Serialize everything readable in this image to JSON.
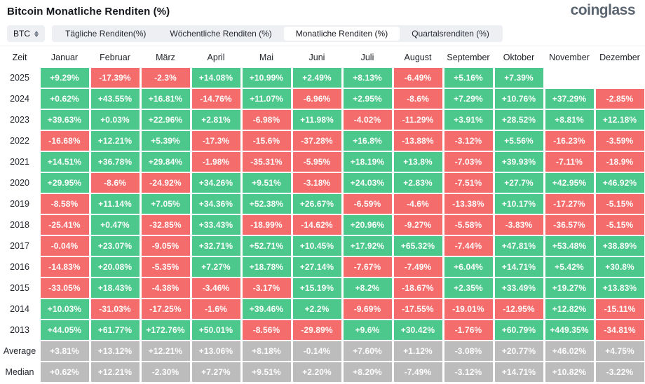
{
  "header": {
    "title": "Bitcoin Monatliche Renditen (%)",
    "logo": "coinglass"
  },
  "toolbar": {
    "symbol_selector": {
      "label": "BTC"
    },
    "tabs": [
      {
        "label": "Tägliche Renditen(%)",
        "active": false
      },
      {
        "label": "Wöchentliche Renditen (%)",
        "active": false
      },
      {
        "label": "Monatliche Renditen (%)",
        "active": true
      },
      {
        "label": "Quartalsrenditen (%)",
        "active": false
      }
    ]
  },
  "colors": {
    "positive": "#4dc88c",
    "negative": "#f56c6c",
    "neutral": "#bcbcbc"
  },
  "chart_data": {
    "type": "heatmap",
    "title": "Bitcoin Monatliche Renditen (%)",
    "time_header": "Zeit",
    "columns": [
      "Januar",
      "Februar",
      "März",
      "April",
      "Mai",
      "Juni",
      "Juli",
      "August",
      "September",
      "Oktober",
      "November",
      "Dezember"
    ],
    "rows": [
      {
        "label": "2025",
        "values": [
          "+9.29%",
          "-17.39%",
          "-2.3%",
          "+14.08%",
          "+10.99%",
          "+2.49%",
          "+8.13%",
          "-6.49%",
          "+5.16%",
          "+7.39%",
          "",
          ""
        ]
      },
      {
        "label": "2024",
        "values": [
          "+0.62%",
          "+43.55%",
          "+16.81%",
          "-14.76%",
          "+11.07%",
          "-6.96%",
          "+2.95%",
          "-8.6%",
          "+7.29%",
          "+10.76%",
          "+37.29%",
          "-2.85%"
        ]
      },
      {
        "label": "2023",
        "values": [
          "+39.63%",
          "+0.03%",
          "+22.96%",
          "+2.81%",
          "-6.98%",
          "+11.98%",
          "-4.02%",
          "-11.29%",
          "+3.91%",
          "+28.52%",
          "+8.81%",
          "+12.18%"
        ]
      },
      {
        "label": "2022",
        "values": [
          "-16.68%",
          "+12.21%",
          "+5.39%",
          "-17.3%",
          "-15.6%",
          "-37.28%",
          "+16.8%",
          "-13.88%",
          "-3.12%",
          "+5.56%",
          "-16.23%",
          "-3.59%"
        ]
      },
      {
        "label": "2021",
        "values": [
          "+14.51%",
          "+36.78%",
          "+29.84%",
          "-1.98%",
          "-35.31%",
          "-5.95%",
          "+18.19%",
          "+13.8%",
          "-7.03%",
          "+39.93%",
          "-7.11%",
          "-18.9%"
        ]
      },
      {
        "label": "2020",
        "values": [
          "+29.95%",
          "-8.6%",
          "-24.92%",
          "+34.26%",
          "+9.51%",
          "-3.18%",
          "+24.03%",
          "+2.83%",
          "-7.51%",
          "+27.7%",
          "+42.95%",
          "+46.92%"
        ]
      },
      {
        "label": "2019",
        "values": [
          "-8.58%",
          "+11.14%",
          "+7.05%",
          "+34.36%",
          "+52.38%",
          "+26.67%",
          "-6.59%",
          "-4.6%",
          "-13.38%",
          "+10.17%",
          "-17.27%",
          "-5.15%"
        ]
      },
      {
        "label": "2018",
        "values": [
          "-25.41%",
          "+0.47%",
          "-32.85%",
          "+33.43%",
          "-18.99%",
          "-14.62%",
          "+20.96%",
          "-9.27%",
          "-5.58%",
          "-3.83%",
          "-36.57%",
          "-5.15%"
        ]
      },
      {
        "label": "2017",
        "values": [
          "-0.04%",
          "+23.07%",
          "-9.05%",
          "+32.71%",
          "+52.71%",
          "+10.45%",
          "+17.92%",
          "+65.32%",
          "-7.44%",
          "+47.81%",
          "+53.48%",
          "+38.89%"
        ]
      },
      {
        "label": "2016",
        "values": [
          "-14.83%",
          "+20.08%",
          "-5.35%",
          "+7.27%",
          "+18.78%",
          "+27.14%",
          "-7.67%",
          "-7.49%",
          "+6.04%",
          "+14.71%",
          "+5.42%",
          "+30.8%"
        ]
      },
      {
        "label": "2015",
        "values": [
          "-33.05%",
          "+18.43%",
          "-4.38%",
          "-3.46%",
          "-3.17%",
          "+15.19%",
          "+8.2%",
          "-18.67%",
          "+2.35%",
          "+33.49%",
          "+19.27%",
          "+13.83%"
        ]
      },
      {
        "label": "2014",
        "values": [
          "+10.03%",
          "-31.03%",
          "-17.25%",
          "-1.6%",
          "+39.46%",
          "+2.2%",
          "-9.69%",
          "-17.55%",
          "-19.01%",
          "-12.95%",
          "+12.82%",
          "-15.11%"
        ]
      },
      {
        "label": "2013",
        "values": [
          "+44.05%",
          "+61.77%",
          "+172.76%",
          "+50.01%",
          "-8.56%",
          "-29.89%",
          "+9.6%",
          "+30.42%",
          "-1.76%",
          "+60.79%",
          "+449.35%",
          "-34.81%"
        ]
      }
    ],
    "summary_rows": [
      {
        "label": "Average",
        "values": [
          "+3.81%",
          "+13.12%",
          "+12.21%",
          "+13.06%",
          "+8.18%",
          "-0.14%",
          "+7.60%",
          "+1.12%",
          "-3.08%",
          "+20.77%",
          "+46.02%",
          "+4.75%"
        ]
      },
      {
        "label": "Median",
        "values": [
          "+0.62%",
          "+12.21%",
          "-2.30%",
          "+7.27%",
          "+9.51%",
          "+2.20%",
          "+8.20%",
          "-7.49%",
          "-3.12%",
          "+14.71%",
          "+10.82%",
          "-3.22%"
        ]
      }
    ]
  }
}
